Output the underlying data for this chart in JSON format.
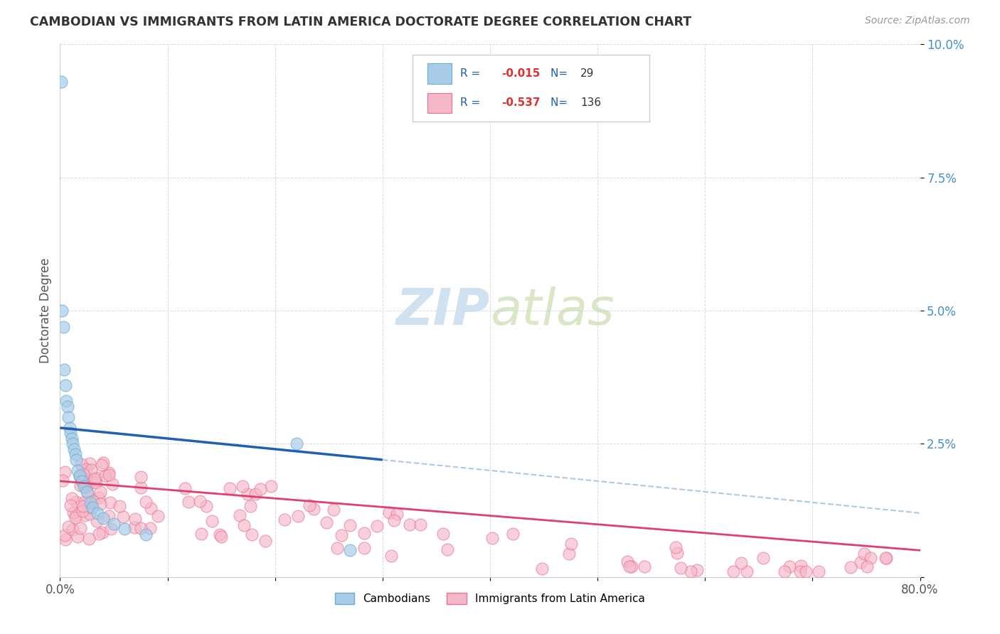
{
  "title": "CAMBODIAN VS IMMIGRANTS FROM LATIN AMERICA DOCTORATE DEGREE CORRELATION CHART",
  "source": "Source: ZipAtlas.com",
  "ylabel": "Doctorate Degree",
  "xlim": [
    0.0,
    0.8
  ],
  "ylim": [
    0.0,
    0.1
  ],
  "legend_R1": "-0.015",
  "legend_N1": "29",
  "legend_R2": "-0.537",
  "legend_N2": "136",
  "blue_scatter_color": "#a8cce8",
  "blue_edge_color": "#6aaad4",
  "pink_scatter_color": "#f5b8c8",
  "pink_edge_color": "#e87090",
  "blue_line_color": "#2060b0",
  "pink_line_color": "#e04070",
  "dashed_line_color": "#b0c8e0",
  "watermark_color": "#c8ddf0",
  "ytick_color": "#4090d0",
  "grid_color": "#d8d8d8"
}
